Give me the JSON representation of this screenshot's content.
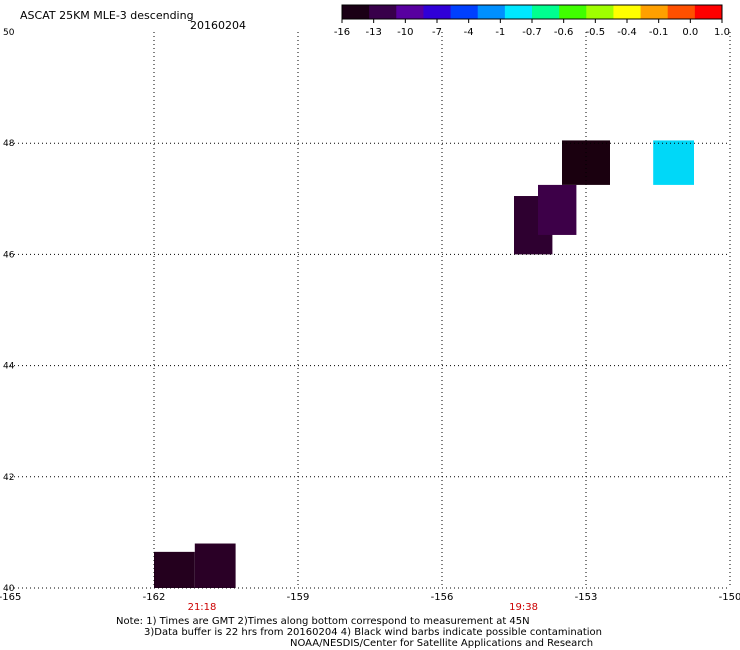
{
  "header": {
    "title": "ASCAT 25KM MLE-3 descending",
    "date": "20160204"
  },
  "colorbar": {
    "labels": [
      "-16",
      "-13",
      "-10",
      "-7",
      "-4",
      "-1",
      "-0.7",
      "-0.6",
      "-0.5",
      "-0.4",
      "-0.1",
      "0.0",
      "1.0"
    ],
    "colors": [
      "#1a0015",
      "#38004a",
      "#5800a0",
      "#3000d8",
      "#0040ff",
      "#0090ff",
      "#00e8ff",
      "#00ff90",
      "#40ff00",
      "#a0ff00",
      "#ffff00",
      "#ffa000",
      "#ff5000",
      "#ff0000"
    ]
  },
  "map": {
    "lon_range": [
      -165,
      -150
    ],
    "lat_range": [
      40,
      50
    ],
    "lon_ticks": [
      "-165",
      "-162",
      "-159",
      "-156",
      "-153",
      "-150"
    ],
    "lat_ticks": [
      "50",
      "48",
      "46",
      "44",
      "42",
      "40"
    ],
    "time_labels": [
      {
        "text": "21:18",
        "lon": -161.0
      },
      {
        "text": "19:38",
        "lon": -154.3
      }
    ],
    "cells": [
      {
        "lon0": -162.0,
        "lon1": -161.15,
        "lat0": 40.0,
        "lat1": 40.65,
        "color": "#24001e"
      },
      {
        "lon0": -161.15,
        "lon1": -160.3,
        "lat0": 40.0,
        "lat1": 40.8,
        "color": "#2a0026"
      },
      {
        "lon0": -154.5,
        "lon1": -153.7,
        "lat0": 46.0,
        "lat1": 47.05,
        "color": "#2e0030"
      },
      {
        "lon0": -154.0,
        "lon1": -153.2,
        "lat0": 46.35,
        "lat1": 47.25,
        "color": "#3d0048"
      },
      {
        "lon0": -153.5,
        "lon1": -152.5,
        "lat0": 47.25,
        "lat1": 48.05,
        "color": "#1a000f"
      },
      {
        "lon0": -151.6,
        "lon1": -150.75,
        "lat0": 47.25,
        "lat1": 48.05,
        "color": "#00d8f8"
      }
    ]
  },
  "notes": {
    "line1": "Note: 1) Times are GMT 2)Times along bottom correspond to measurement at 45N",
    "line2": "3)Data buffer is 22 hrs from 20160204 4) Black wind barbs indicate possible contamination",
    "line3": "NOAA/NESDIS/Center for Satellite Applications and Research"
  }
}
